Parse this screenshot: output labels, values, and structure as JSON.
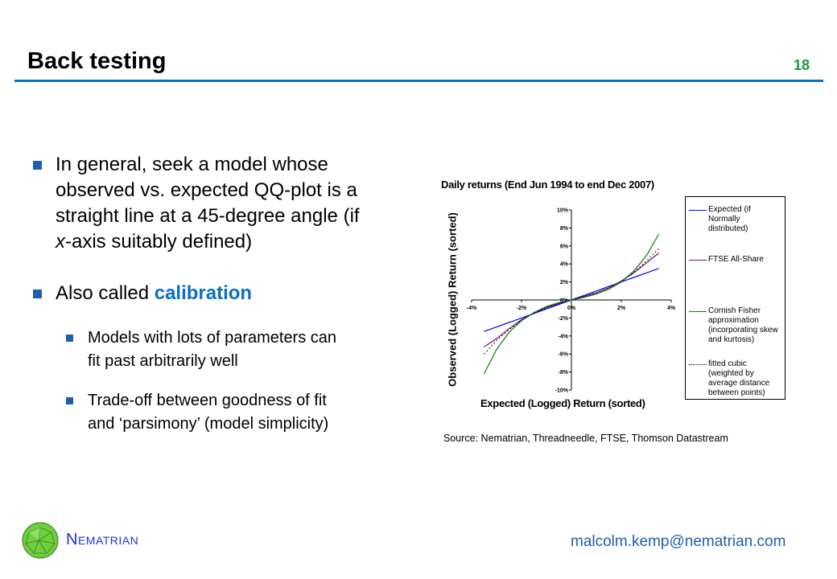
{
  "header": {
    "title": "Back testing",
    "page_number": "18"
  },
  "bullets": [
    {
      "lines": [
        "In general, seek a model whose",
        "observed vs. expected QQ-plot is a",
        "straight line at a 45-degree angle (if",
        ""
      ],
      "last_line_italic": "x",
      "last_line_rest": "-axis suitably defined)"
    },
    {
      "text": "Also called ",
      "highlight": "calibration",
      "sub": [
        {
          "lines": [
            "Models with lots of parameters can",
            "fit past arbitrarily well"
          ]
        },
        {
          "lines": [
            "Trade-off between goodness of fit",
            "and ‘parsimony’ (model simplicity)"
          ]
        }
      ]
    }
  ],
  "chart_data": {
    "type": "line",
    "title": "Daily returns (End Jun 1994 to end Dec 2007)",
    "xlabel": "Expected (Logged) Return (sorted)",
    "ylabel": "Observed (Logged) Return (sorted)",
    "xlim": [
      -4,
      4
    ],
    "ylim": [
      -10,
      10
    ],
    "x_ticks": [
      "-4%",
      "-2%",
      "0%",
      "2%",
      "4%"
    ],
    "y_ticks": [
      "10%",
      "8%",
      "6%",
      "4%",
      "2%",
      "0%",
      "-2%",
      "-4%",
      "-6%",
      "-8%",
      "-10%"
    ],
    "grid": false,
    "legend_position": "right",
    "x": [
      -3.5,
      -3,
      -2.5,
      -2,
      -1.5,
      -1,
      -0.5,
      0,
      0.5,
      1,
      1.5,
      2,
      2.5,
      3,
      3.5
    ],
    "series": [
      {
        "name": "Expected (if Normally distributed)",
        "color": "#0000ff",
        "style": "solid",
        "values": [
          -3.5,
          -3,
          -2.5,
          -2,
          -1.5,
          -1,
          -0.5,
          0,
          0.5,
          1,
          1.5,
          2,
          2.5,
          3,
          3.5
        ]
      },
      {
        "name": "FTSE All-Share",
        "color": "#800080",
        "style": "solid",
        "values": [
          -5.2,
          -4.3,
          -3.2,
          -2.2,
          -1.45,
          -0.85,
          -0.4,
          0,
          0.38,
          0.8,
          1.35,
          2.1,
          3.0,
          4.1,
          5.2
        ]
      },
      {
        "name": "Cornish Fisher approximation (incorporating skew and kurtosis)",
        "color": "#008000",
        "style": "solid",
        "values": [
          -8.2,
          -5.5,
          -3.6,
          -2.3,
          -1.4,
          -0.72,
          -0.3,
          0,
          0.29,
          0.65,
          1.2,
          2.0,
          3.2,
          4.9,
          7.3
        ]
      },
      {
        "name": "fitted cubic (weighted by average distance between points)",
        "color": "#000000",
        "style": "dotted",
        "values": [
          -6.0,
          -4.5,
          -3.3,
          -2.25,
          -1.45,
          -0.85,
          -0.4,
          0,
          0.38,
          0.8,
          1.35,
          2.1,
          3.05,
          4.3,
          5.7
        ]
      }
    ]
  },
  "legend_lines": [
    [
      "Expected (if",
      "Normally",
      "distributed)"
    ],
    [
      "FTSE All-Share"
    ],
    [
      "Cornish Fisher",
      "approximation",
      "(incorporating skew",
      "and kurtosis)"
    ],
    [
      "fitted cubic",
      "(weighted by",
      "average distance",
      "between points)"
    ]
  ],
  "source": "Source: Nematrian, Threadneedle, FTSE, Thomson Datastream",
  "footer": {
    "brand": "Nematrian",
    "email": "malcolm.kemp@nematrian.com"
  }
}
